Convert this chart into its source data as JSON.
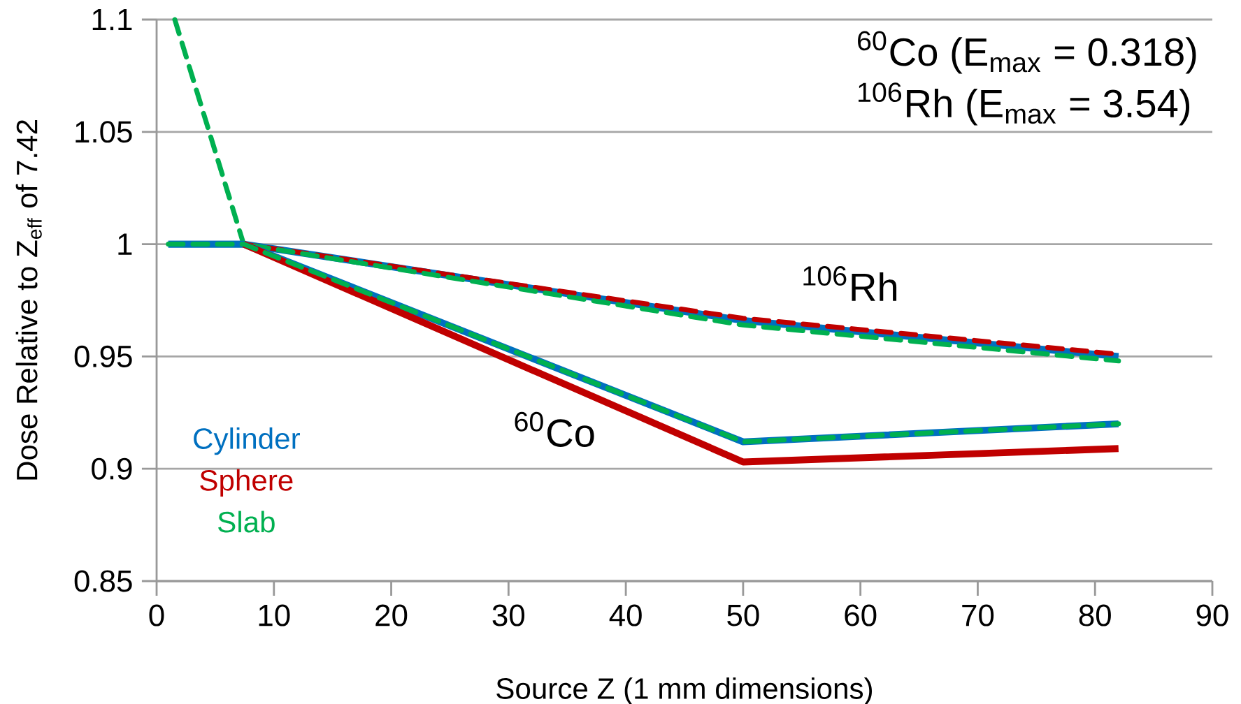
{
  "chart_data": {
    "type": "line",
    "xlabel": "Source Z (1 mm dimensions)",
    "ylabel": "Dose Relative to Z$_{eff}$ of 7.42",
    "x": [
      1,
      7.42,
      50,
      82
    ],
    "series": [
      {
        "color": "#0070c0",
        "line_style": "solid",
        "values": [
          1,
          1,
          0.966,
          0.95
        ]
      },
      {
        "color": "#c00000",
        "line_style": "dashed",
        "values": [
          null,
          1,
          0.967,
          0.951
        ]
      },
      {
        "color": "#00b050",
        "line_style": "dashed",
        "x": [
          1.55,
          7.42,
          50,
          82
        ],
        "values": [
          1.1,
          1,
          0.964,
          0.948
        ]
      },
      {
        "name": "Cylinder",
        "color": "#0070c0",
        "line_style": "solid",
        "values": [
          1,
          1,
          0.912,
          0.92
        ]
      },
      {
        "name": "Sphere",
        "color": "#c00000",
        "line_style": "solid",
        "values": [
          null,
          1,
          0.903,
          0.909
        ]
      },
      {
        "name": "Slab",
        "color": "#00b050",
        "line_style": "dashed",
        "values": [
          1,
          1,
          0.912,
          0.92
        ]
      }
    ],
    "xlim": [
      0,
      90
    ],
    "xticks": [
      0,
      10,
      20,
      30,
      40,
      50,
      60,
      70,
      80,
      90
    ],
    "ylim": [
      0.85,
      1.1
    ],
    "yticks": [
      0.85,
      0.9,
      0.95,
      1,
      1.05,
      1.1
    ],
    "grid": "y",
    "legend": "bottom left",
    "marker": "none",
    "annotations": [
      "$^{60}$Co (E$_{max}$ = 0.318)",
      "$^{106}$Rh (E$_{max}$ = 3.54)",
      "$^{60}$Co",
      "$^{106}$Rh"
    ]
  }
}
